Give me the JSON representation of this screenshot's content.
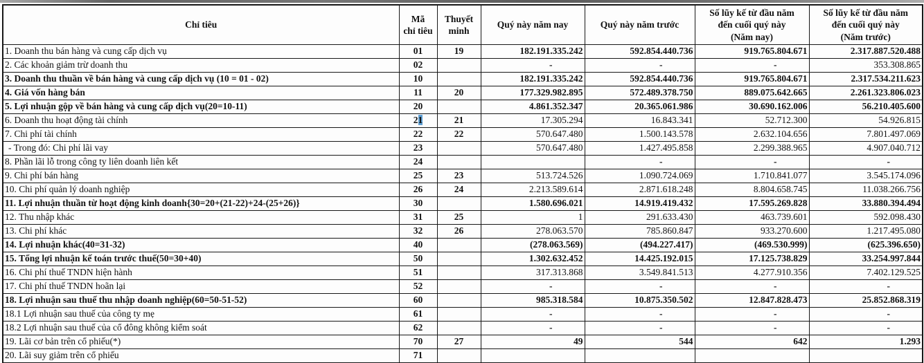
{
  "document": {
    "type_label": "income-statement-scan",
    "selection_highlight_color": "#5e9fd4"
  },
  "table": {
    "columns": [
      {
        "id": "label",
        "lines": [
          "Chỉ tiêu"
        ]
      },
      {
        "id": "code",
        "lines": [
          "Mã",
          "chỉ tiêu"
        ]
      },
      {
        "id": "note",
        "lines": [
          "Thuyết",
          "minh"
        ]
      },
      {
        "id": "q_now",
        "lines": [
          "Quý này năm nay"
        ]
      },
      {
        "id": "q_prev",
        "lines": [
          "Quý này năm trước"
        ]
      },
      {
        "id": "ytd_now",
        "lines": [
          "Số lũy kế từ đầu năm",
          "đến cuối quý này",
          "(Năm nay)"
        ]
      },
      {
        "id": "ytd_prev",
        "lines": [
          "Số lũy kế từ đầu năm",
          "đến cuối quý này",
          "(Năm trước)"
        ]
      }
    ],
    "rows": [
      {
        "label": "1. Doanh thu bán hàng và cung cấp dịch vụ",
        "code": "01",
        "note": "19",
        "values": [
          "182.191.335.242",
          "592.854.440.736",
          "919.765.804.671",
          "2.317.887.520.488"
        ],
        "bold_label": false,
        "bold_values": true
      },
      {
        "label": "2. Các khoản giảm trừ doanh thu",
        "code": "02",
        "note": "",
        "values": [
          "-",
          "-",
          "-",
          "353.308.865"
        ],
        "bold_label": false,
        "bold_values": false
      },
      {
        "label": "3. Doanh thu thuần về bán hàng và cung cấp dịch vụ (10 = 01 - 02)",
        "code": "10",
        "note": "",
        "values": [
          "182.191.335.242",
          "592.854.440.736",
          "919.765.804.671",
          "2.317.534.211.623"
        ],
        "bold_label": true,
        "bold_values": true
      },
      {
        "label": "4. Giá vốn hàng bán",
        "code": "11",
        "note": "20",
        "values": [
          "177.329.982.895",
          "572.489.378.750",
          "889.075.642.665",
          "2.261.323.806.023"
        ],
        "bold_label": true,
        "bold_values": true
      },
      {
        "label": "5. Lợi nhuận gộp về bán hàng và cung cấp dịch vụ(20=10-11)",
        "code": "20",
        "note": "",
        "values": [
          "4.861.352.347",
          "20.365.061.986",
          "30.690.162.006",
          "56.210.405.600"
        ],
        "bold_label": true,
        "bold_values": true
      },
      {
        "label": "6. Doanh thu hoạt động tài chính",
        "code": "21",
        "note": "21",
        "values": [
          "17.305.294",
          "16.843.341",
          "52.712.300",
          "54.926.815"
        ],
        "bold_label": false,
        "bold_values": false,
        "code_last_char_selected": true
      },
      {
        "label": "7. Chi phí tài chính",
        "code": "22",
        "note": "22",
        "values": [
          "570.647.480",
          "1.500.143.578",
          "2.632.104.656",
          "7.801.497.069"
        ],
        "bold_label": false,
        "bold_values": false
      },
      {
        "label": "- Trong đó: Chi phí lãi vay",
        "code": "23",
        "note": "",
        "values": [
          "570.647.480",
          "1.427.495.858",
          "2.299.388.965",
          "4.907.040.712"
        ],
        "bold_label": false,
        "bold_values": false,
        "indent": true
      },
      {
        "label": "8. Phần lãi lỗ trong công ty liên doanh liên kết",
        "code": "24",
        "note": "",
        "values": [
          "",
          "-",
          "-",
          "-"
        ],
        "bold_label": false,
        "bold_values": false
      },
      {
        "label": "9. Chi phí bán hàng",
        "code": "25",
        "note": "23",
        "values": [
          "513.724.526",
          "1.090.724.069",
          "1.710.841.077",
          "3.545.174.096"
        ],
        "bold_label": false,
        "bold_values": false
      },
      {
        "label": "10. Chi phí quản lý doanh nghiệp",
        "code": "26",
        "note": "24",
        "values": [
          "2.213.589.614",
          "2.871.618.248",
          "8.804.658.745",
          "11.038.266.756"
        ],
        "bold_label": false,
        "bold_values": false
      },
      {
        "label": "11. Lợi nhuận thuần từ hoạt động kinh doanh{30=20+(21-22)+24-(25+26)}",
        "code": "30",
        "note": "",
        "values": [
          "1.580.696.021",
          "14.919.419.432",
          "17.595.269.828",
          "33.880.394.494"
        ],
        "bold_label": true,
        "bold_values": true
      },
      {
        "label": "12. Thu nhập khác",
        "code": "31",
        "note": "25",
        "values": [
          "1",
          "291.633.430",
          "463.739.601",
          "592.098.430"
        ],
        "bold_label": false,
        "bold_values": false
      },
      {
        "label": "13. Chi phí khác",
        "code": "32",
        "note": "26",
        "values": [
          "278.063.570",
          "785.860.847",
          "933.270.600",
          "1.217.495.080"
        ],
        "bold_label": false,
        "bold_values": false
      },
      {
        "label": "14. Lợi nhuận khác(40=31-32)",
        "code": "40",
        "note": "",
        "values": [
          "(278.063.569)",
          "(494.227.417)",
          "(469.530.999)",
          "(625.396.650)"
        ],
        "bold_label": true,
        "bold_values": true
      },
      {
        "label": "15. Tổng lợi nhuận kế toán trước thuế(50=30+40)",
        "code": "50",
        "note": "",
        "values": [
          "1.302.632.452",
          "14.425.192.015",
          "17.125.738.829",
          "33.254.997.844"
        ],
        "bold_label": true,
        "bold_values": true
      },
      {
        "label": "16. Chi phí thuế TNDN hiện hành",
        "code": "51",
        "note": "",
        "values": [
          "317.313.868",
          "3.549.841.513",
          "4.277.910.356",
          "7.402.129.525"
        ],
        "bold_label": false,
        "bold_values": false
      },
      {
        "label": "17. Chi phí thuế TNDN hoãn lại",
        "code": "52",
        "note": "",
        "values": [
          "-",
          "-",
          "-",
          "-"
        ],
        "bold_label": false,
        "bold_values": false
      },
      {
        "label": "18. Lợi nhuận sau thuế thu nhập doanh nghiệp(60=50-51-52)",
        "code": "60",
        "note": "",
        "values": [
          "985.318.584",
          "10.875.350.502",
          "12.847.828.473",
          "25.852.868.319"
        ],
        "bold_label": true,
        "bold_values": true
      },
      {
        "label": "18.1 Lợi nhuận sau thuế của công ty mẹ",
        "code": "61",
        "note": "",
        "values": [
          "-",
          "-",
          "-",
          "-"
        ],
        "bold_label": false,
        "bold_values": false
      },
      {
        "label": "18.2 Lợi nhuận sau thuế của cổ đông không kiểm soát",
        "code": "62",
        "note": "",
        "values": [
          "-",
          "-",
          "-",
          "-"
        ],
        "bold_label": false,
        "bold_values": false
      },
      {
        "label": "19. Lãi cơ bản trên cổ phiếu(*)",
        "code": "70",
        "note": "27",
        "values": [
          "49",
          "544",
          "642",
          "1.293"
        ],
        "bold_label": false,
        "bold_values": true
      },
      {
        "label": "20. Lãi suy giảm trên cổ phiếu",
        "code": "71",
        "note": "",
        "values": [
          "",
          "",
          "",
          ""
        ],
        "bold_label": false,
        "bold_values": false
      }
    ]
  }
}
